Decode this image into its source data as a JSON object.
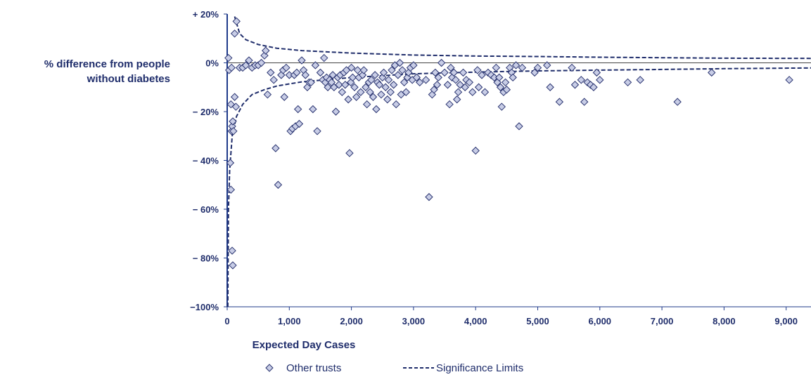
{
  "chart_data": {
    "type": "scatter",
    "ylabel_lines": [
      "% difference from people",
      "without diabetes"
    ],
    "xlabel": "Expected Day Cases",
    "xlim": [
      0,
      9400
    ],
    "ylim": [
      -100,
      20
    ],
    "x_ticks": [
      {
        "value": 0,
        "label": "0"
      },
      {
        "value": 1000,
        "label": "1,000"
      },
      {
        "value": 2000,
        "label": "2,000"
      },
      {
        "value": 3000,
        "label": "3,000"
      },
      {
        "value": 4000,
        "label": "4,000"
      },
      {
        "value": 5000,
        "label": "5,000"
      },
      {
        "value": 6000,
        "label": "6,000"
      },
      {
        "value": 7000,
        "label": "7,000"
      },
      {
        "value": 8000,
        "label": "8,000"
      },
      {
        "value": 9000,
        "label": "9,000"
      }
    ],
    "y_ticks": [
      {
        "value": 20,
        "label": "+ 20%"
      },
      {
        "value": 0,
        "label": "0%"
      },
      {
        "value": -20,
        "label": "− 20%"
      },
      {
        "value": -40,
        "label": "− 40%"
      },
      {
        "value": -60,
        "label": "− 60%"
      },
      {
        "value": -80,
        "label": "− 80%"
      },
      {
        "value": -100,
        "label": "−100%"
      }
    ],
    "colors": {
      "axis": "#1f3a8a",
      "point_fill": "#c8cde6",
      "point_stroke": "#2a3470",
      "limit": "#1f2d6b",
      "text": "#1f2d6b",
      "zero_line": "#444444"
    },
    "legend": {
      "position": "bottom",
      "items": [
        {
          "label": "Other trusts",
          "marker": "diamond"
        },
        {
          "label": "Significance Limits",
          "marker": "dashed-line"
        }
      ]
    },
    "significance_limits": {
      "upper": [
        [
          120,
          19
        ],
        [
          200,
          12
        ],
        [
          300,
          9.5
        ],
        [
          500,
          7.5
        ],
        [
          800,
          6
        ],
        [
          1200,
          5
        ],
        [
          2000,
          4
        ],
        [
          3000,
          3.2
        ],
        [
          4000,
          2.8
        ],
        [
          5000,
          2.6
        ],
        [
          6000,
          2.3
        ],
        [
          7000,
          2.1
        ],
        [
          8000,
          1.9
        ],
        [
          9400,
          1.8
        ]
      ],
      "lower": [
        [
          10,
          -100
        ],
        [
          20,
          -60
        ],
        [
          40,
          -44
        ],
        [
          80,
          -30
        ],
        [
          150,
          -22
        ],
        [
          250,
          -17
        ],
        [
          400,
          -13
        ],
        [
          600,
          -11
        ],
        [
          800,
          -9.5
        ],
        [
          1200,
          -7.8
        ],
        [
          2000,
          -6
        ],
        [
          3000,
          -4.5
        ],
        [
          4000,
          -3.8
        ],
        [
          5000,
          -3.3
        ],
        [
          6000,
          -3
        ],
        [
          7000,
          -2.7
        ],
        [
          8000,
          -2.4
        ],
        [
          9400,
          -2.1
        ]
      ]
    },
    "points": [
      [
        20,
        2
      ],
      [
        30,
        -3
      ],
      [
        60,
        -17
      ],
      [
        50,
        -41
      ],
      [
        60,
        -52
      ],
      [
        80,
        -77
      ],
      [
        90,
        -83
      ],
      [
        70,
        -28
      ],
      [
        80,
        -26
      ],
      [
        90,
        -24
      ],
      [
        100,
        -28
      ],
      [
        70,
        -2
      ],
      [
        120,
        -14
      ],
      [
        140,
        -18
      ],
      [
        120,
        12
      ],
      [
        150,
        17
      ],
      [
        200,
        -2
      ],
      [
        250,
        -2
      ],
      [
        300,
        -1
      ],
      [
        350,
        1
      ],
      [
        400,
        -2
      ],
      [
        450,
        -1
      ],
      [
        500,
        -1
      ],
      [
        550,
        0
      ],
      [
        600,
        3
      ],
      [
        620,
        5
      ],
      [
        650,
        -13
      ],
      [
        700,
        -4
      ],
      [
        750,
        -7
      ],
      [
        780,
        -35
      ],
      [
        820,
        -50
      ],
      [
        870,
        -5
      ],
      [
        900,
        -3
      ],
      [
        920,
        -14
      ],
      [
        950,
        -2
      ],
      [
        1000,
        -5
      ],
      [
        1020,
        -28
      ],
      [
        1050,
        -27
      ],
      [
        1080,
        -5
      ],
      [
        1100,
        -26
      ],
      [
        1120,
        -4
      ],
      [
        1140,
        -19
      ],
      [
        1160,
        -25
      ],
      [
        1200,
        1
      ],
      [
        1230,
        -3
      ],
      [
        1260,
        -5
      ],
      [
        1290,
        -10
      ],
      [
        1320,
        -8
      ],
      [
        1350,
        -8
      ],
      [
        1380,
        -19
      ],
      [
        1420,
        -1
      ],
      [
        1450,
        -28
      ],
      [
        1500,
        -4
      ],
      [
        1540,
        -7
      ],
      [
        1560,
        2
      ],
      [
        1580,
        -8
      ],
      [
        1600,
        -6
      ],
      [
        1620,
        -10
      ],
      [
        1650,
        -7
      ],
      [
        1680,
        -8
      ],
      [
        1700,
        -5
      ],
      [
        1720,
        -10
      ],
      [
        1750,
        -20
      ],
      [
        1780,
        -6
      ],
      [
        1800,
        -9
      ],
      [
        1820,
        -5
      ],
      [
        1850,
        -12
      ],
      [
        1880,
        -4
      ],
      [
        1900,
        -9
      ],
      [
        1920,
        -3
      ],
      [
        1950,
        -15
      ],
      [
        1970,
        -37
      ],
      [
        1990,
        -8
      ],
      [
        2000,
        -2
      ],
      [
        2020,
        -6
      ],
      [
        2050,
        -10
      ],
      [
        2080,
        -14
      ],
      [
        2100,
        -3
      ],
      [
        2120,
        -6
      ],
      [
        2150,
        -12
      ],
      [
        2180,
        -5
      ],
      [
        2200,
        -3
      ],
      [
        2230,
        -10
      ],
      [
        2250,
        -17
      ],
      [
        2280,
        -8
      ],
      [
        2300,
        -12
      ],
      [
        2320,
        -7
      ],
      [
        2350,
        -14
      ],
      [
        2380,
        -5
      ],
      [
        2400,
        -19
      ],
      [
        2420,
        -8
      ],
      [
        2450,
        -9
      ],
      [
        2480,
        -13
      ],
      [
        2500,
        -6
      ],
      [
        2520,
        -4
      ],
      [
        2550,
        -10
      ],
      [
        2580,
        -15
      ],
      [
        2600,
        -7
      ],
      [
        2630,
        -12
      ],
      [
        2650,
        -3
      ],
      [
        2680,
        -9
      ],
      [
        2700,
        -1
      ],
      [
        2720,
        -17
      ],
      [
        2750,
        -5
      ],
      [
        2780,
        0
      ],
      [
        2800,
        -13
      ],
      [
        2820,
        -3
      ],
      [
        2850,
        -8
      ],
      [
        2880,
        -12
      ],
      [
        2900,
        -6
      ],
      [
        2920,
        -4
      ],
      [
        2950,
        -2
      ],
      [
        2980,
        -7
      ],
      [
        3000,
        -1
      ],
      [
        3050,
        -6
      ],
      [
        3100,
        -8
      ],
      [
        3200,
        -7
      ],
      [
        3250,
        -55
      ],
      [
        3300,
        -13
      ],
      [
        3330,
        -11
      ],
      [
        3350,
        -4
      ],
      [
        3380,
        -9
      ],
      [
        3400,
        -6
      ],
      [
        3450,
        0
      ],
      [
        3500,
        -4
      ],
      [
        3550,
        -9
      ],
      [
        3580,
        -17
      ],
      [
        3600,
        -2
      ],
      [
        3620,
        -6
      ],
      [
        3650,
        -4
      ],
      [
        3680,
        -7
      ],
      [
        3700,
        -15
      ],
      [
        3720,
        -12
      ],
      [
        3750,
        -9
      ],
      [
        3800,
        -4
      ],
      [
        3830,
        -10
      ],
      [
        3850,
        -7
      ],
      [
        3900,
        -8
      ],
      [
        3950,
        -12
      ],
      [
        4000,
        -36
      ],
      [
        4030,
        -3
      ],
      [
        4050,
        -10
      ],
      [
        4100,
        -5
      ],
      [
        4150,
        -12
      ],
      [
        4200,
        -4
      ],
      [
        4250,
        -5
      ],
      [
        4300,
        -6
      ],
      [
        4330,
        -2
      ],
      [
        4350,
        -8
      ],
      [
        4380,
        -6
      ],
      [
        4400,
        -10
      ],
      [
        4420,
        -18
      ],
      [
        4450,
        -12
      ],
      [
        4480,
        -8
      ],
      [
        4500,
        -11
      ],
      [
        4550,
        -2
      ],
      [
        4580,
        -4
      ],
      [
        4600,
        -6
      ],
      [
        4650,
        -1
      ],
      [
        4700,
        -26
      ],
      [
        4750,
        -2
      ],
      [
        4950,
        -4
      ],
      [
        5000,
        -2
      ],
      [
        5150,
        -1
      ],
      [
        5200,
        -10
      ],
      [
        5350,
        -16
      ],
      [
        5550,
        -2
      ],
      [
        5600,
        -9
      ],
      [
        5700,
        -7
      ],
      [
        5750,
        -16
      ],
      [
        5800,
        -8
      ],
      [
        5850,
        -9
      ],
      [
        5900,
        -10
      ],
      [
        5950,
        -4
      ],
      [
        6000,
        -7
      ],
      [
        6450,
        -8
      ],
      [
        6650,
        -7
      ],
      [
        7250,
        -16
      ],
      [
        7800,
        -4
      ],
      [
        9050,
        -7
      ]
    ]
  }
}
